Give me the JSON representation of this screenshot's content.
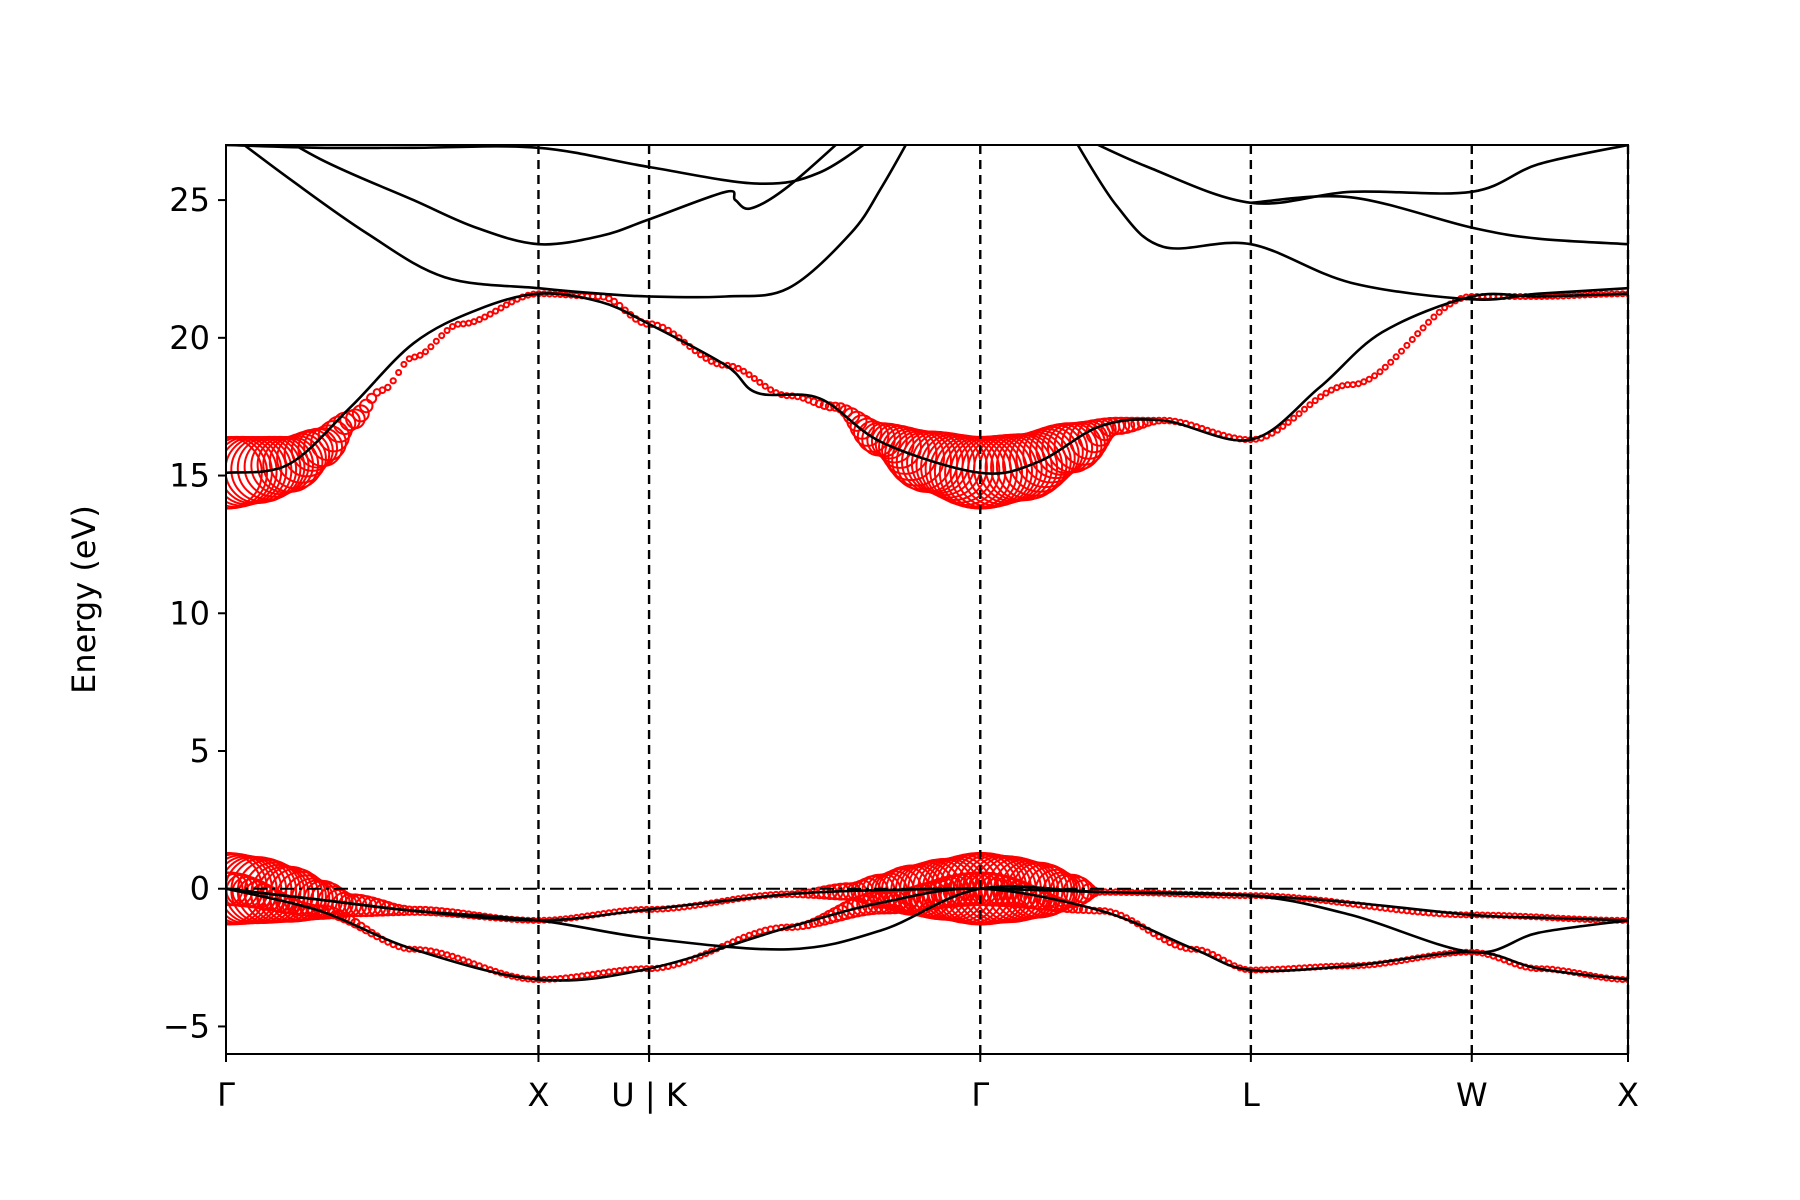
{
  "chart_data": {
    "type": "line",
    "title": "",
    "xlabel": "",
    "ylabel": "Energy (eV)",
    "ylim": [
      -6,
      27
    ],
    "yticks": [
      -5,
      0,
      5,
      10,
      15,
      20,
      25
    ],
    "ytick_labels": [
      "−5",
      "0",
      "5",
      "10",
      "15",
      "20",
      "25"
    ],
    "kpath": [
      {
        "label": "Γ",
        "x": 0.0
      },
      {
        "label": "X",
        "x": 1.0
      },
      {
        "label": "U | K",
        "x": 1.354
      },
      {
        "label": "Γ",
        "x": 2.414
      },
      {
        "label": "L",
        "x": 3.28
      },
      {
        "label": "W",
        "x": 3.987
      },
      {
        "label": "X",
        "x": 4.487
      }
    ],
    "xlim": [
      0,
      4.487
    ],
    "fermi_level": 0,
    "grid": false,
    "legend": "none",
    "colors": {
      "bands": "#000000",
      "projection": "#ff0000",
      "axes": "#000000"
    },
    "bands": [
      {
        "x": [
          0,
          0.3,
          0.6,
          1.0,
          1.354,
          1.8,
          2.1,
          2.414,
          2.8,
          3.1,
          3.28,
          3.6,
          3.987,
          4.2,
          4.487
        ],
        "y": [
          0,
          -0.8,
          -2.2,
          -3.3,
          -2.9,
          -1.4,
          -0.5,
          0,
          -0.8,
          -2.2,
          -2.95,
          -2.8,
          -2.3,
          -2.9,
          -3.3
        ]
      },
      {
        "x": [
          0,
          0.3,
          0.6,
          1.0,
          1.354,
          1.8,
          2.1,
          2.414,
          2.8,
          3.28,
          3.6,
          3.987,
          4.2,
          4.487
        ],
        "y": [
          0,
          -0.4,
          -0.8,
          -1.15,
          -1.8,
          -2.2,
          -1.5,
          0,
          -0.12,
          -0.25,
          -0.5,
          -0.95,
          -1.05,
          -1.15
        ]
      },
      {
        "x": [
          0,
          0.3,
          0.6,
          1.0,
          1.354,
          1.8,
          2.1,
          2.414,
          2.8,
          3.28,
          3.6,
          3.987,
          4.2,
          4.487
        ],
        "y": [
          0,
          -0.4,
          -0.8,
          -1.15,
          -0.75,
          -0.2,
          -0.05,
          0,
          -0.12,
          -0.25,
          -0.95,
          -2.3,
          -1.6,
          -1.15
        ]
      },
      {
        "x": [
          0,
          0.2,
          0.4,
          0.6,
          0.8,
          1.0,
          1.2,
          1.354,
          1.6,
          1.7,
          1.9,
          2.1,
          2.414,
          2.6,
          2.8,
          3.0,
          3.28,
          3.5,
          3.7,
          3.987,
          4.2,
          4.487
        ],
        "y": [
          15.1,
          15.4,
          17.5,
          19.8,
          21.0,
          21.6,
          21.3,
          20.5,
          19.0,
          18.0,
          17.8,
          16.2,
          15.1,
          15.5,
          16.8,
          17.0,
          16.3,
          18.2,
          20.2,
          21.5,
          21.5,
          21.6
        ]
      },
      {
        "x": [
          0,
          0.2,
          0.45,
          0.7,
          1.0,
          1.2,
          1.354,
          1.6,
          1.8,
          2.0,
          2.1,
          2.2
        ],
        "y": [
          27.5,
          25.8,
          23.8,
          22.2,
          21.8,
          21.6,
          21.5,
          21.5,
          21.8,
          23.8,
          25.5,
          27.5
        ]
      },
      {
        "x": [
          0,
          0.3,
          0.6,
          0.8,
          1.0,
          1.2,
          1.354,
          1.6,
          1.63,
          1.68,
          1.8,
          2.0
        ],
        "y": [
          28.5,
          26.5,
          25.0,
          24.0,
          23.4,
          23.7,
          24.3,
          25.3,
          25.0,
          24.7,
          25.5,
          27.5
        ]
      },
      {
        "x": [
          0,
          0.3,
          0.6,
          1.0,
          1.354,
          1.7,
          1.9,
          2.1
        ],
        "y": [
          27.0,
          26.9,
          26.9,
          26.9,
          26.2,
          25.6,
          26.0,
          27.5
        ]
      },
      {
        "x": [
          2.7,
          2.85,
          3.0,
          3.28,
          3.6,
          3.987,
          4.2,
          4.487
        ],
        "y": [
          27.5,
          24.8,
          23.3,
          23.4,
          22.0,
          21.4,
          21.6,
          21.8
        ]
      },
      {
        "x": [
          2.7,
          2.95,
          3.28,
          3.6,
          3.987,
          4.2,
          4.487
        ],
        "y": [
          27.5,
          26.2,
          24.9,
          25.3,
          25.3,
          26.3,
          27.0
        ]
      },
      {
        "x": [
          3.28,
          3.6,
          3.987,
          4.2,
          4.487
        ],
        "y": [
          24.9,
          25.1,
          24.0,
          23.6,
          23.4
        ]
      }
    ],
    "projection_weights": [
      {
        "x": [
          0,
          0.1,
          0.2,
          0.3,
          0.4,
          0.5,
          0.6,
          0.75,
          1.0,
          1.2,
          1.354,
          1.6,
          1.8,
          1.95,
          2.1,
          2.25,
          2.414,
          2.55,
          2.7,
          2.85,
          3.0,
          3.28,
          3.6,
          3.987,
          4.2,
          4.487
        ],
        "y": [
          15.1,
          15.2,
          15.4,
          16.0,
          17.0,
          18.1,
          19.3,
          20.5,
          21.6,
          21.5,
          20.5,
          19.0,
          17.9,
          17.5,
          16.3,
          15.5,
          15.1,
          15.3,
          16.0,
          16.8,
          17.0,
          16.3,
          18.3,
          21.5,
          21.5,
          21.6
        ],
        "radius": [
          1.3,
          1.2,
          1.0,
          0.7,
          0.35,
          0.1,
          0.08,
          0.07,
          0.06,
          0.1,
          0.1,
          0.08,
          0.07,
          0.15,
          0.6,
          1.1,
          1.3,
          1.2,
          0.9,
          0.3,
          0.1,
          0.08,
          0.05,
          0.05,
          0.05,
          0.05
        ]
      },
      {
        "x": [
          0,
          0.1,
          0.2,
          0.3,
          0.4,
          0.6,
          1.0,
          1.354,
          1.8,
          2.0,
          2.1,
          2.2,
          2.3,
          2.414,
          2.5,
          2.6,
          2.7,
          2.8,
          3.28,
          3.987,
          4.487
        ],
        "y": [
          0,
          -0.05,
          -0.2,
          -0.4,
          -0.6,
          -0.8,
          -1.15,
          -0.75,
          -0.2,
          -0.1,
          -0.08,
          -0.05,
          -0.02,
          0,
          -0.02,
          -0.05,
          -0.08,
          -0.12,
          -0.25,
          -0.95,
          -1.15
        ],
        "radius": [
          1.3,
          1.2,
          1.0,
          0.7,
          0.4,
          0.15,
          0.08,
          0.08,
          0.1,
          0.3,
          0.6,
          0.9,
          1.1,
          1.3,
          1.2,
          1.0,
          0.6,
          0.1,
          0.06,
          0.05,
          0.05
        ]
      },
      {
        "x": [
          0,
          0.3,
          0.6,
          1.0,
          1.354,
          1.8,
          2.1,
          2.414,
          2.8,
          3.1,
          3.28,
          3.6,
          3.987,
          4.2,
          4.487
        ],
        "y": [
          0,
          -0.8,
          -2.2,
          -3.3,
          -2.9,
          -1.4,
          -0.5,
          0,
          -0.8,
          -2.2,
          -2.95,
          -2.8,
          -2.3,
          -2.9,
          -3.3
        ],
        "radius": [
          0.6,
          0.2,
          0.06,
          0.05,
          0.05,
          0.1,
          0.4,
          0.6,
          0.1,
          0.05,
          0.05,
          0.05,
          0.05,
          0.05,
          0.05
        ]
      }
    ]
  }
}
